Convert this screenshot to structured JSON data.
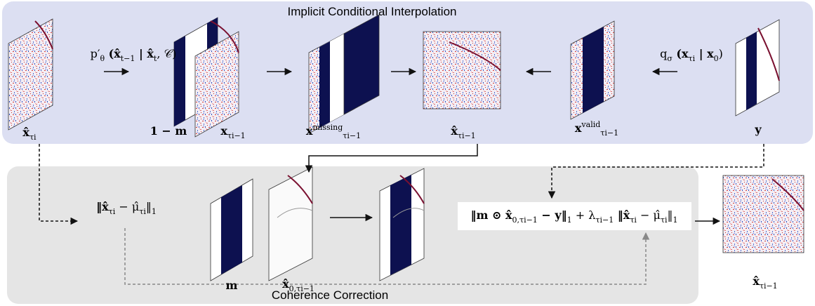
{
  "panels": {
    "interpolation": {
      "title": "Implicit Conditional Interpolation"
    },
    "correction": {
      "title": "Coherence Correction"
    }
  },
  "labels": [
    {
      "parts": [
        {
          "text": "p′"
        },
        {
          "sub": "θ"
        },
        {
          "text": " (x̂"
        },
        {
          "sub": "t−1"
        },
        {
          "text": " | x̂"
        },
        {
          "sub": "t"
        },
        {
          "text": ", 𝒞)"
        }
      ]
    },
    {
      "parts": [
        {
          "text": "q"
        },
        {
          "sub": "σ"
        },
        {
          "text": " (x"
        },
        {
          "sub": "τi"
        },
        {
          "text": " | x"
        },
        {
          "sub": "0"
        },
        {
          "text": ")"
        }
      ]
    },
    {
      "parts": [
        {
          "text": "x̂"
        },
        {
          "sub": "τi"
        }
      ]
    },
    {
      "parts": [
        {
          "text": "1 − m"
        }
      ]
    },
    {
      "parts": [
        {
          "text": "x"
        },
        {
          "sub": "τi−1"
        }
      ]
    },
    {
      "parts": [
        {
          "text": "x"
        },
        {
          "sup": "missing"
        },
        {
          "sub": "τi−1"
        }
      ]
    },
    {
      "parts": [
        {
          "text": "x̂"
        },
        {
          "sub": "τi−1"
        }
      ]
    },
    {
      "parts": [
        {
          "text": "x"
        },
        {
          "sup": "valid"
        },
        {
          "sub": "τi−1"
        }
      ]
    },
    {
      "parts": [
        {
          "text": "y"
        }
      ]
    },
    {
      "parts": [
        {
          "text": "‖x̂"
        },
        {
          "sub": "τi"
        },
        {
          "text": " − μ̂"
        },
        {
          "sub": "τi"
        },
        {
          "text": "‖"
        },
        {
          "sub": "1"
        }
      ]
    },
    {
      "parts": [
        {
          "text": "m"
        }
      ]
    },
    {
      "parts": [
        {
          "text": "x̂"
        },
        {
          "sub": "0,τi−1"
        }
      ]
    },
    {
      "parts": [
        {
          "text": "‖m ⊙ x̂"
        },
        {
          "sub": "0,τi−1"
        },
        {
          "text": " − y‖"
        },
        {
          "sub": "1"
        },
        {
          "text": " + λ"
        },
        {
          "sub": "τi−1"
        },
        {
          "text": " ‖x̂"
        },
        {
          "sub": "τi"
        },
        {
          "text": " − μ̂"
        },
        {
          "sub": "τi"
        },
        {
          "text": "‖"
        },
        {
          "sub": "1"
        }
      ]
    },
    {
      "parts": [
        {
          "text": "x̂"
        },
        {
          "sub": "τi−1"
        }
      ]
    }
  ]
}
